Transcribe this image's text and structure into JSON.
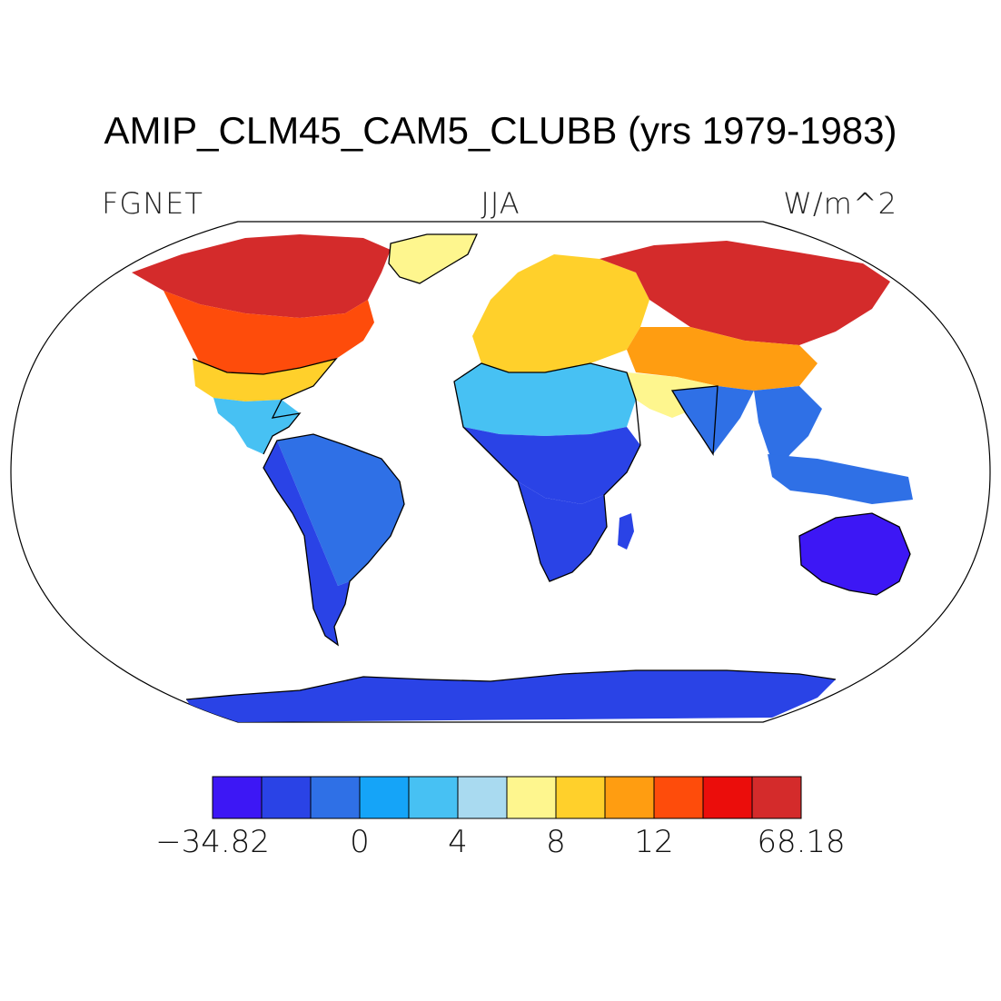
{
  "title": "AMIP_CLM45_CAM5_CLUBB (yrs 1979-1983)",
  "left_label": "FGNET",
  "center_label": "JJA",
  "right_label": "W/m^2",
  "projection": "robinson",
  "colorbar": {
    "colors": [
      "#3d17f5",
      "#2a43e6",
      "#2f70e6",
      "#15a4f8",
      "#47c1f3",
      "#a9daf0",
      "#fef68e",
      "#ffd02b",
      "#ff9d11",
      "#fe4c0b",
      "#eb0d0b",
      "#d42b2b"
    ],
    "labels": [
      {
        "text": "−34.82",
        "boundary": 0
      },
      {
        "text": "0",
        "boundary": 3
      },
      {
        "text": "4",
        "boundary": 5
      },
      {
        "text": "8",
        "boundary": 7
      },
      {
        "text": "12",
        "boundary": 9
      },
      {
        "text": "68.18",
        "boundary": 12
      }
    ]
  },
  "land_regions": [
    {
      "name": "north-america-high-lat",
      "color": "#d42b2b"
    },
    {
      "name": "north-america-mid-lat",
      "color": "#fe4c0b"
    },
    {
      "name": "north-america-south",
      "color": "#ffd02b"
    },
    {
      "name": "mexico-central-america",
      "color": "#47c1f3"
    },
    {
      "name": "greenland",
      "color": "#fef68e"
    },
    {
      "name": "south-america",
      "color": "#2f70e6"
    },
    {
      "name": "patagonia",
      "color": "#2a43e6"
    },
    {
      "name": "europe",
      "color": "#ffd02b"
    },
    {
      "name": "north-africa",
      "color": "#47c1f3"
    },
    {
      "name": "central-africa",
      "color": "#2a43e6"
    },
    {
      "name": "southern-africa",
      "color": "#2a43e6"
    },
    {
      "name": "madagascar",
      "color": "#2a43e6"
    },
    {
      "name": "siberia",
      "color": "#d42b2b"
    },
    {
      "name": "central-asia",
      "color": "#ff9d11"
    },
    {
      "name": "middle-east",
      "color": "#fef68e"
    },
    {
      "name": "india",
      "color": "#2f70e6"
    },
    {
      "name": "southeast-asia",
      "color": "#2f70e6"
    },
    {
      "name": "maritime-continent",
      "color": "#2f70e6"
    },
    {
      "name": "australia",
      "color": "#3d17f5"
    },
    {
      "name": "antarctica",
      "color": "#2a43e6"
    }
  ]
}
